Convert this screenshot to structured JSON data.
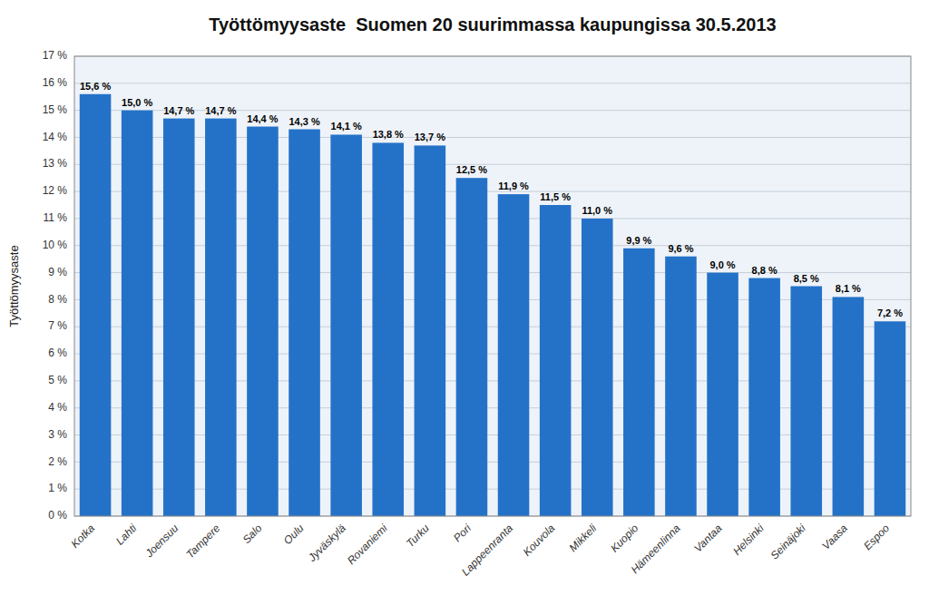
{
  "chart_data": {
    "type": "bar",
    "title": "Työttömyysaste  Suomen 20 suurimmassa kaupungissa 30.5.2013",
    "ylabel": "Työttömyysaste",
    "categories": [
      "Kotka",
      "Lahti",
      "Joensuu",
      "Tampere",
      "Salo",
      "Oulu",
      "Jyväskylä",
      "Rovaniemi",
      "Turku",
      "Pori",
      "Lappeenranta",
      "Kouvola",
      "Mikkeli",
      "Kuopio",
      "Hämeenlinna",
      "Vantaa",
      "Helsinki",
      "Seinäjoki",
      "Vaasa",
      "Espoo"
    ],
    "values": [
      15.6,
      15.0,
      14.7,
      14.7,
      14.4,
      14.3,
      14.1,
      13.8,
      13.7,
      12.5,
      11.9,
      11.5,
      11.0,
      9.9,
      9.6,
      9.0,
      8.8,
      8.5,
      8.1,
      7.2
    ],
    "value_labels": [
      "15,6 %",
      "15,0 %",
      "14,7 %",
      "14,7 %",
      "14,4 %",
      "14,3 %",
      "14,1 %",
      "13,8 %",
      "13,7 %",
      "12,5 %",
      "11,9 %",
      "11,5 %",
      "11,0 %",
      "9,9 %",
      "9,6 %",
      "9,0 %",
      "8,8 %",
      "8,5 %",
      "8,1 %",
      "7,2 %"
    ],
    "data_labels": true,
    "color": "#2472C8",
    "ylim": [
      0,
      17
    ],
    "yticks": [
      {
        "value": 0,
        "label": "0 %"
      },
      {
        "value": 1,
        "label": "1 %"
      },
      {
        "value": 2,
        "label": "2 %"
      },
      {
        "value": 3,
        "label": "3 %"
      },
      {
        "value": 4,
        "label": "4 %"
      },
      {
        "value": 5,
        "label": "5 %"
      },
      {
        "value": 6,
        "label": "6 %"
      },
      {
        "value": 7,
        "label": "7 %"
      },
      {
        "value": 8,
        "label": "8 %"
      },
      {
        "value": 9,
        "label": "9 %"
      },
      {
        "value": 10,
        "label": "10 %"
      },
      {
        "value": 11,
        "label": "11 %"
      },
      {
        "value": 12,
        "label": "12 %"
      },
      {
        "value": 13,
        "label": "13 %"
      },
      {
        "value": 14,
        "label": "14 %"
      },
      {
        "value": 15,
        "label": "15 %"
      },
      {
        "value": 16,
        "label": "16 %"
      },
      {
        "value": 17,
        "label": "17 %"
      }
    ],
    "grid": true
  }
}
